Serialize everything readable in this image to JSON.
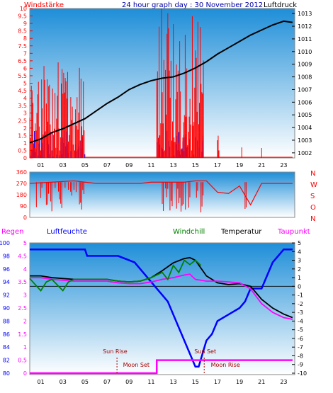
{
  "colors": {
    "wind": "#ff0000",
    "gust_blue": "#0000ff",
    "pressure": "#000000",
    "rain": "#ff00ff",
    "humidity": "#0000ff",
    "windchill": "#008000",
    "temperature": "#000000",
    "dewpoint": "#ff00ff",
    "sun_moon": "#aa0000",
    "bg_top": "#1e8ed8",
    "bg_bottom": "#ffffff"
  },
  "title": "24 hour graph day : 30 November 2012",
  "x_ticks": [
    "01",
    "03",
    "05",
    "07",
    "09",
    "11",
    "13",
    "15",
    "17",
    "19",
    "21",
    "23"
  ],
  "chart_data": [
    {
      "type": "line",
      "panel": "wind-pressure",
      "labels": {
        "left": "Windstärke",
        "right": "Luftdruck"
      },
      "left_axis": {
        "ticks": [
          "0",
          "0.5",
          "1",
          "1.5",
          "2",
          "2.5",
          "3",
          "3.5",
          "4",
          "4.5",
          "5",
          "5.5",
          "6",
          "6.5",
          "7",
          "7.5",
          "8",
          "8.5",
          "9",
          "9.5",
          "10"
        ],
        "ylim": [
          0,
          10
        ]
      },
      "right_axis": {
        "ticks": [
          "1002",
          "1003",
          "1004",
          "1005",
          "1006",
          "1007",
          "1008",
          "1009",
          "1010",
          "1011",
          "1012",
          "1013"
        ],
        "ylim": [
          1001.6,
          1013.4
        ]
      },
      "xlim": [
        0,
        24
      ],
      "series": [
        {
          "values_key": "pressure",
          "x": [
            0,
            1,
            2,
            3,
            4,
            5,
            6,
            7,
            8,
            9,
            10,
            11,
            12,
            13,
            14,
            15,
            16,
            17,
            18,
            19,
            20,
            21,
            22,
            23,
            23.8
          ],
          "y": [
            1002.8,
            1003.1,
            1003.6,
            1003.9,
            1004.3,
            1004.7,
            1005.3,
            1005.9,
            1006.4,
            1007.0,
            1007.4,
            1007.7,
            1007.9,
            1008.0,
            1008.3,
            1008.7,
            1009.2,
            1009.8,
            1010.3,
            1010.8,
            1011.3,
            1011.7,
            1012.1,
            1012.4,
            1012.3
          ]
        }
      ],
      "wind_bursts": [
        {
          "x": [
            0,
            5
          ],
          "peak": 5.5,
          "gust_peak": 7.5
        },
        {
          "x": [
            11.5,
            15.8
          ],
          "peak": 9.5,
          "gust_peak": 9.5
        },
        {
          "x": [
            17,
            17.2
          ],
          "peak": 1.5
        },
        {
          "x": [
            19.2,
            19.3
          ],
          "peak": 1.5
        },
        {
          "x": [
            21,
            21.1
          ],
          "peak": 1.5
        }
      ]
    },
    {
      "type": "line",
      "panel": "wind-direction",
      "left_axis": {
        "ticks": [
          "0",
          "90",
          "180",
          "270",
          "360"
        ],
        "ylim": [
          0,
          360
        ]
      },
      "right_labels": [
        "N",
        "W",
        "S",
        "O",
        "N"
      ],
      "series": [
        {
          "name": "direction",
          "x": [
            0,
            2,
            4,
            5,
            6,
            10,
            11,
            14,
            15,
            16,
            17,
            18,
            19,
            20,
            21,
            22,
            23,
            23.8
          ],
          "y": [
            270,
            280,
            290,
            280,
            270,
            270,
            280,
            280,
            290,
            290,
            200,
            190,
            250,
            100,
            270,
            270,
            270,
            270
          ]
        }
      ]
    },
    {
      "type": "line",
      "panel": "temp-humidity",
      "labels": {
        "left1": "Regen",
        "left2": "Luftfeuchte",
        "windchill": "Windchill",
        "temperature": "Temperatur",
        "dewpoint": "Taupunkt"
      },
      "rain_axis": {
        "ticks": [
          "0",
          "0.5",
          "1",
          "1.5",
          "2",
          "2.5",
          "3",
          "3.5",
          "4",
          "4.5",
          "5"
        ],
        "ylim": [
          0,
          5
        ]
      },
      "humidity_axis": {
        "ticks": [
          "80",
          "82",
          "84",
          "86",
          "88",
          "90",
          "92",
          "94",
          "96",
          "98",
          "100"
        ],
        "ylim": [
          80,
          100
        ]
      },
      "temp_axis": {
        "ticks": [
          "-10",
          "-9",
          "-8",
          "-7",
          "-6",
          "-5",
          "-4",
          "-3",
          "-2",
          "-1",
          "0",
          "1",
          "2",
          "3",
          "4",
          "5"
        ],
        "ylim": [
          -10,
          5
        ]
      },
      "series": [
        {
          "name": "Luftfeuchte",
          "x": [
            0,
            5,
            5.2,
            8,
            9.5,
            10,
            11,
            11.5,
            12,
            12.5,
            13,
            13.5,
            14,
            14.5,
            15,
            15.3,
            16,
            16.5,
            17,
            18,
            19,
            19.5,
            20,
            21,
            21.5,
            22,
            22.5,
            23,
            23.8
          ],
          "y": [
            99,
            99,
            98,
            98,
            97,
            96,
            94,
            93,
            92,
            91,
            89,
            87,
            85,
            83,
            81,
            81,
            85,
            86,
            88,
            89,
            90,
            91,
            93,
            93,
            95,
            97,
            98,
            99,
            99
          ]
        },
        {
          "name": "Temperatur",
          "x": [
            0,
            1,
            2,
            3,
            4,
            5,
            6,
            7,
            8,
            9,
            10,
            11,
            12,
            13,
            14,
            14.5,
            15,
            16,
            17,
            18,
            19,
            20,
            21,
            22,
            23,
            23.8
          ],
          "y": [
            1.2,
            1.2,
            1.0,
            0.9,
            0.8,
            0.8,
            0.8,
            0.8,
            0.6,
            0.5,
            0.6,
            1.0,
            1.8,
            2.7,
            3.2,
            3.3,
            3.0,
            1.2,
            0.4,
            0.2,
            0.3,
            0.0,
            -1.5,
            -2.5,
            -3.2,
            -3.6
          ]
        },
        {
          "name": "Taupunkt",
          "x": [
            0,
            1,
            2,
            3,
            4,
            5,
            6,
            7,
            8,
            9,
            10,
            11,
            12,
            13,
            14,
            14.5,
            15,
            16,
            17,
            18,
            19,
            20,
            21,
            22,
            23,
            23.8
          ],
          "y": [
            1.0,
            1.0,
            0.8,
            0.7,
            0.6,
            0.6,
            0.6,
            0.6,
            0.4,
            0.3,
            0.3,
            0.5,
            0.8,
            1.0,
            1.3,
            1.4,
            0.8,
            0.6,
            0.6,
            0.5,
            0.4,
            -0.3,
            -2.0,
            -3.0,
            -3.6,
            -3.8
          ]
        },
        {
          "name": "Windchill",
          "x": [
            0,
            1,
            1.5,
            2,
            3,
            3.5,
            4,
            5,
            6,
            7,
            8,
            9,
            10,
            11,
            12,
            12.5,
            13,
            13.5,
            14,
            14.5,
            15,
            15.5
          ],
          "y": [
            0.9,
            -0.5,
            0.5,
            0.8,
            -0.5,
            0.5,
            0.8,
            0.8,
            0.8,
            0.8,
            0.6,
            0.5,
            0.6,
            1.0,
            1.6,
            0.8,
            2.4,
            1.6,
            3.0,
            2.5,
            3.0,
            2.4
          ]
        },
        {
          "name": "Regen",
          "x": [
            0,
            11.5,
            11.5,
            23.8
          ],
          "y": [
            0,
            0,
            0.5,
            0.5
          ]
        }
      ],
      "sun_moon": {
        "sun_rise": "Sun Rise",
        "sun_set": "Sun Set",
        "moon_set": "Moon Set",
        "moon_rise": "Moon Rise",
        "sun_rise_x": 7.9,
        "sun_set_x": 15.8,
        "moon_set_x": 9.6,
        "moon_rise_x": 16.4
      }
    }
  ]
}
